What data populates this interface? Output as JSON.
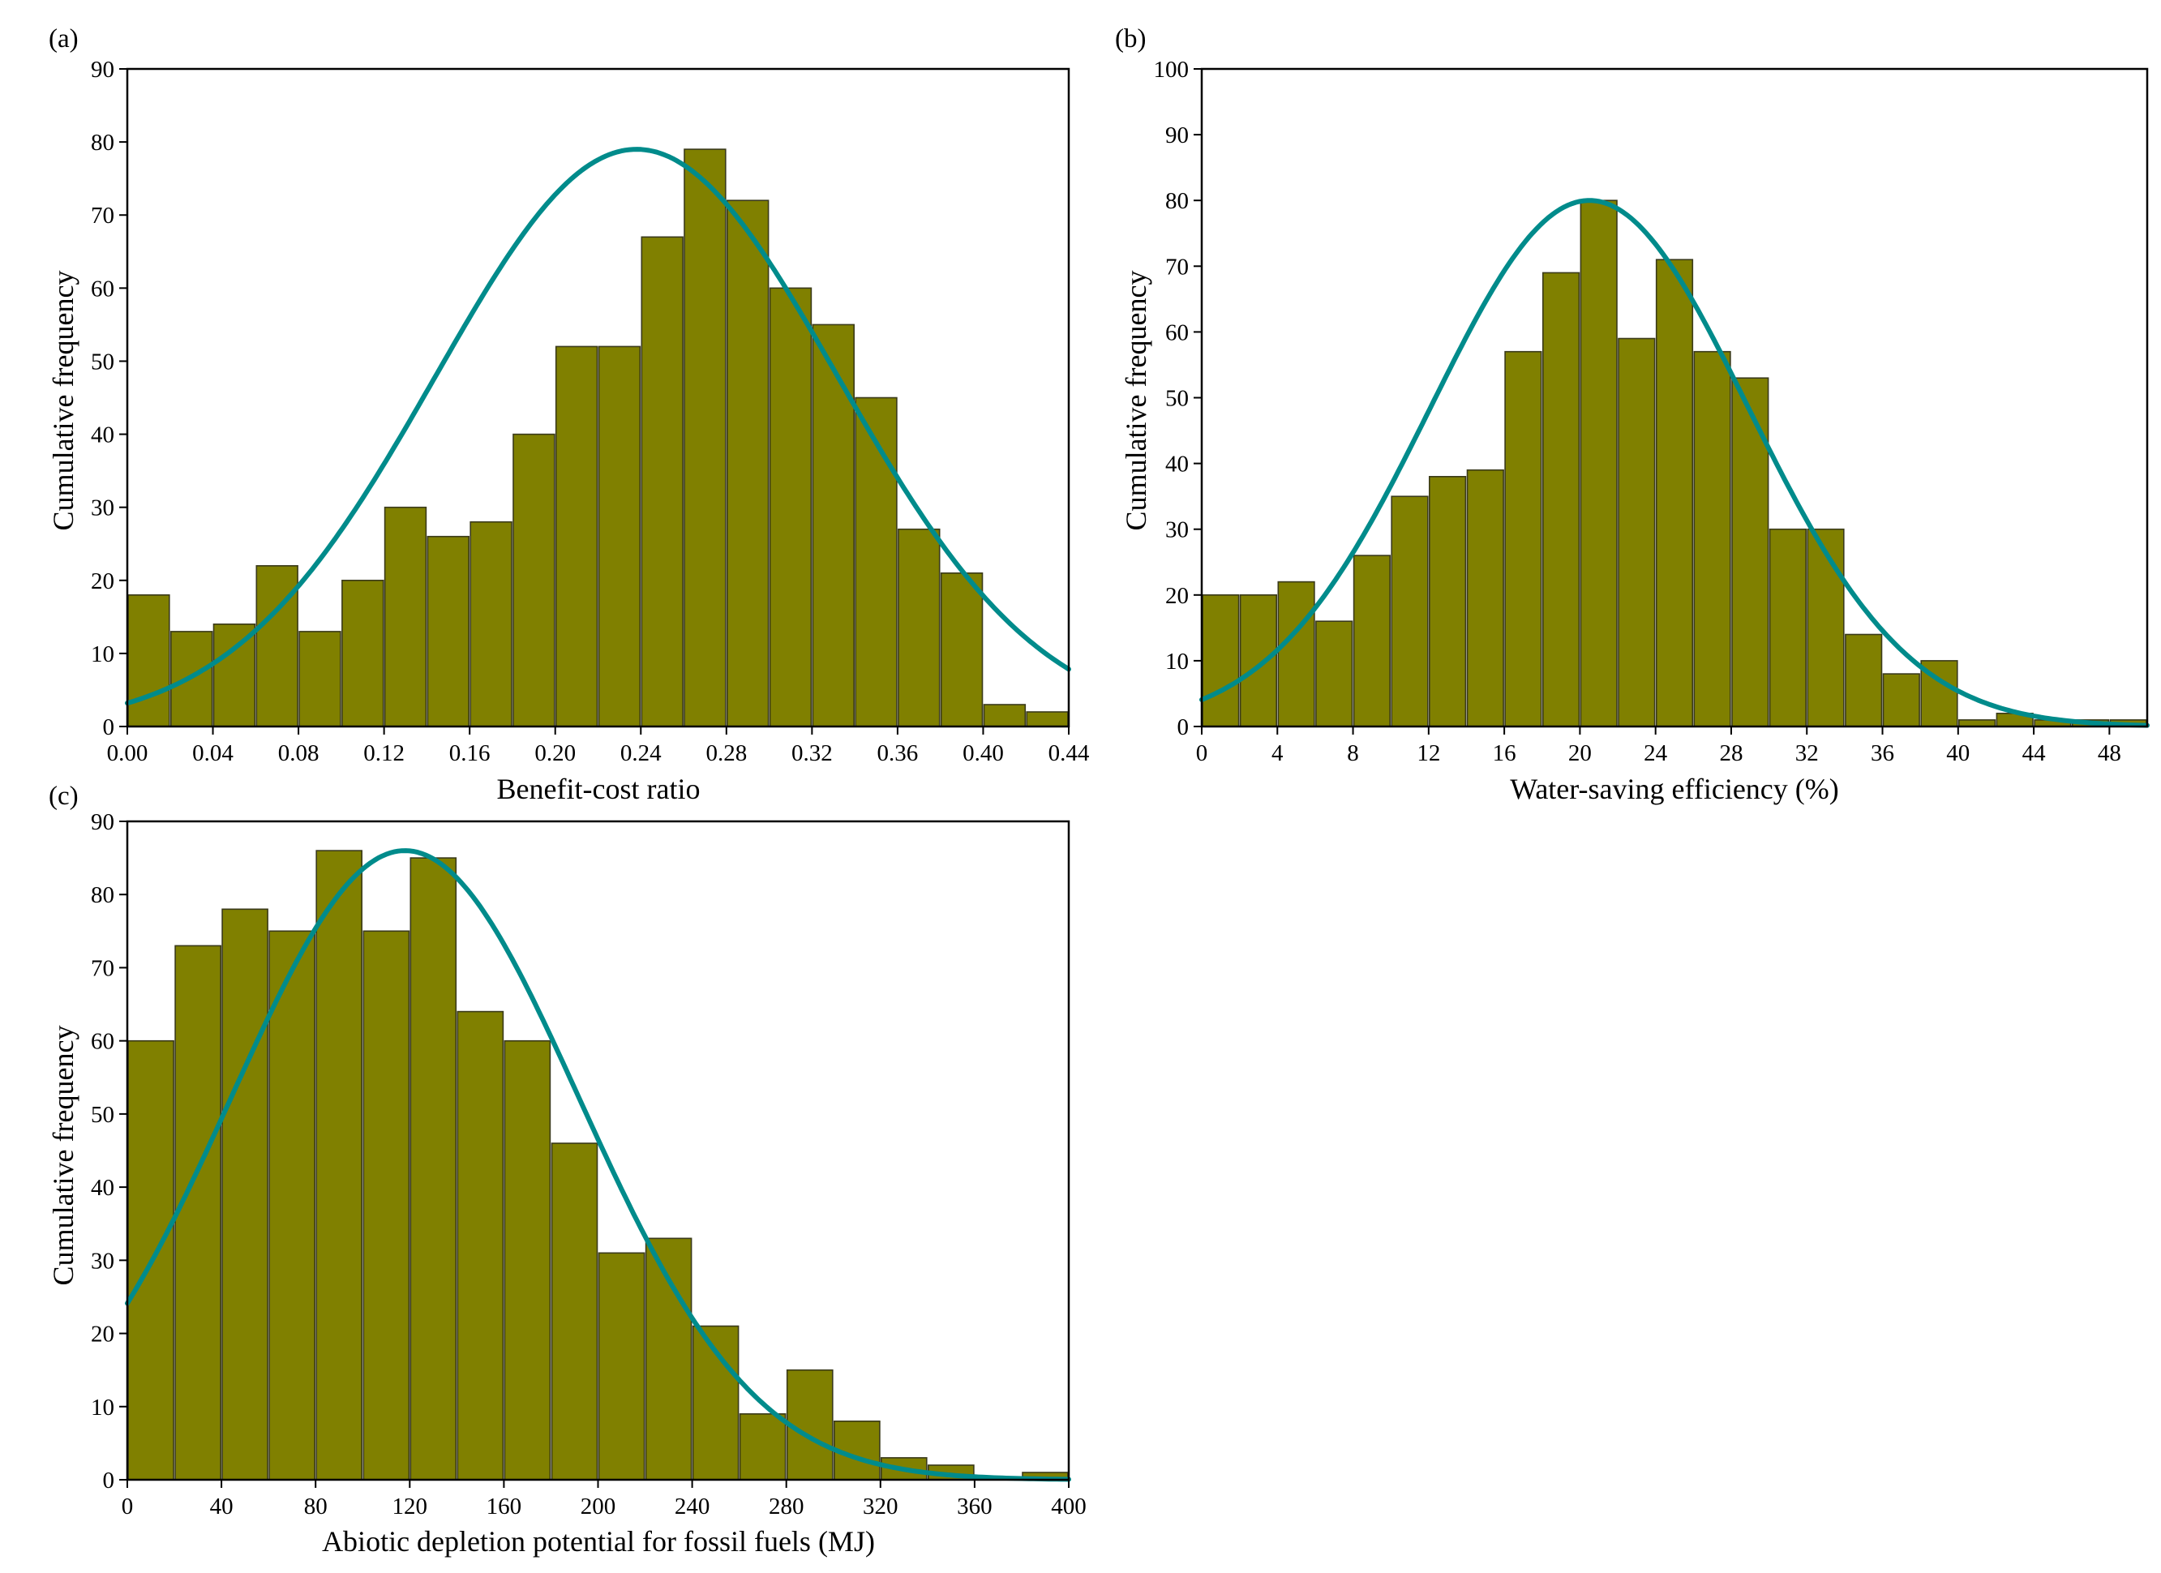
{
  "chart_data": [
    {
      "panel": "(a)",
      "type": "bar",
      "title": "",
      "xlabel": "Benefit-cost ratio",
      "ylabel": "Cumulative frequency",
      "xlim": [
        0,
        0.44
      ],
      "ylim": [
        0,
        90
      ],
      "x_ticks": [
        "0.00",
        "0.04",
        "0.08",
        "0.12",
        "0.16",
        "0.20",
        "0.24",
        "0.28",
        "0.32",
        "0.36",
        "0.40",
        "0.44"
      ],
      "y_ticks": [
        "0",
        "10",
        "20",
        "30",
        "40",
        "50",
        "60",
        "70",
        "80",
        "90"
      ],
      "bin_width": 0.02,
      "bin_starts": [
        0.0,
        0.02,
        0.04,
        0.06,
        0.08,
        0.1,
        0.12,
        0.14,
        0.16,
        0.18,
        0.2,
        0.22,
        0.24,
        0.26,
        0.28,
        0.3,
        0.32,
        0.34,
        0.36,
        0.38,
        0.4,
        0.42
      ],
      "values": [
        18,
        13,
        14,
        22,
        13,
        20,
        30,
        26,
        28,
        40,
        52,
        52,
        67,
        79,
        72,
        60,
        55,
        45,
        27,
        21,
        3,
        2
      ],
      "fit": {
        "type": "normal",
        "mean": 0.238,
        "sd": 0.094,
        "peak": 79
      }
    },
    {
      "panel": "(b)",
      "type": "bar",
      "title": "",
      "xlabel": "Water-saving efficiency (%)",
      "ylabel": "Cumulative frequency",
      "xlim": [
        0,
        50
      ],
      "ylim": [
        0,
        100
      ],
      "x_ticks": [
        "0",
        "4",
        "8",
        "12",
        "16",
        "20",
        "24",
        "28",
        "32",
        "36",
        "40",
        "44",
        "48"
      ],
      "y_ticks": [
        "0",
        "10",
        "20",
        "30",
        "40",
        "50",
        "60",
        "70",
        "80",
        "90",
        "100"
      ],
      "bin_width": 2,
      "bin_starts": [
        0,
        2,
        4,
        6,
        8,
        10,
        12,
        14,
        16,
        18,
        20,
        22,
        24,
        26,
        28,
        30,
        32,
        34,
        36,
        38,
        40,
        42,
        44,
        46,
        48
      ],
      "values": [
        20,
        20,
        22,
        16,
        26,
        35,
        38,
        39,
        57,
        69,
        80,
        59,
        71,
        57,
        53,
        30,
        30,
        14,
        8,
        10,
        1,
        2,
        1,
        1,
        1
      ],
      "fit": {
        "type": "normal",
        "mean": 20.5,
        "sd": 8.4,
        "peak": 80
      }
    },
    {
      "panel": "(c)",
      "type": "bar",
      "title": "",
      "xlabel": "Abiotic depletion potential for fossil fuels (MJ)",
      "ylabel": "Cumulative frequency",
      "xlim": [
        0,
        400
      ],
      "ylim": [
        0,
        90
      ],
      "x_ticks": [
        "0",
        "40",
        "80",
        "120",
        "160",
        "200",
        "240",
        "280",
        "320",
        "360",
        "400"
      ],
      "y_ticks": [
        "0",
        "10",
        "20",
        "30",
        "40",
        "50",
        "60",
        "70",
        "80",
        "90"
      ],
      "bin_width": 20,
      "bin_starts": [
        0,
        20,
        40,
        60,
        80,
        100,
        120,
        140,
        160,
        180,
        200,
        220,
        240,
        260,
        280,
        300,
        320,
        340,
        360,
        380
      ],
      "values": [
        60,
        73,
        78,
        75,
        86,
        75,
        85,
        64,
        60,
        46,
        31,
        33,
        21,
        9,
        15,
        8,
        3,
        2,
        0,
        1
      ],
      "fit": {
        "type": "normal",
        "mean": 118,
        "sd": 74,
        "peak": 86
      }
    }
  ]
}
